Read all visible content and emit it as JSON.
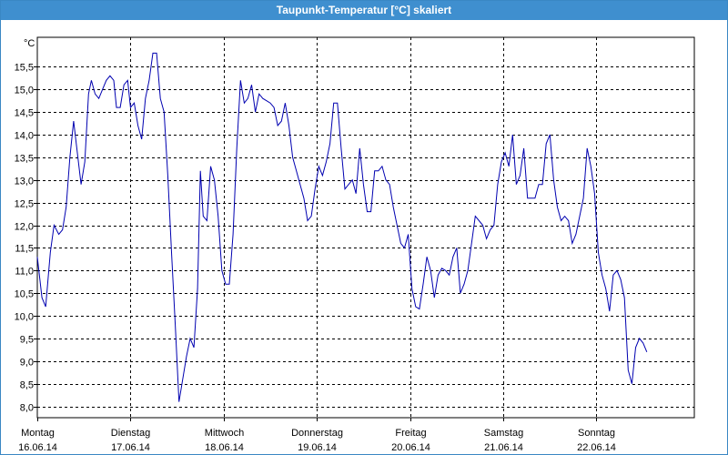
{
  "window": {
    "title": "Taupunkt-Temperatur [°C] skaliert"
  },
  "colors": {
    "title_bar": "#3f8fcf",
    "line": "#0000b0",
    "grid": "#000000"
  },
  "chart_data": {
    "type": "line",
    "title": "Taupunkt-Temperatur [°C] skaliert",
    "unit_label": "°C",
    "ylim": [
      7.75,
      16.15
    ],
    "yticks": [
      8.0,
      8.5,
      9.0,
      9.5,
      10.0,
      10.5,
      11.0,
      11.5,
      12.0,
      12.5,
      13.0,
      13.5,
      14.0,
      14.5,
      15.0,
      15.5
    ],
    "ytick_labels": [
      "8,0",
      "8,5",
      "9,0",
      "9,5",
      "10,0",
      "10,5",
      "11,0",
      "11,5",
      "12,0",
      "12,5",
      "13,0",
      "13,5",
      "14,0",
      "14,5",
      "15,0",
      "15,5"
    ],
    "xlim": [
      0,
      7.05
    ],
    "x_unit": "days since Montag 16.06.14 00:00",
    "day_labels": [
      {
        "day": "Montag",
        "date": "16.06.14"
      },
      {
        "day": "Dienstag",
        "date": "17.06.14"
      },
      {
        "day": "Mittwoch",
        "date": "18.06.14"
      },
      {
        "day": "Donnerstag",
        "date": "19.06.14"
      },
      {
        "day": "Freitag",
        "date": "20.06.14"
      },
      {
        "day": "Samstag",
        "date": "21.06.14"
      },
      {
        "day": "Sonntag",
        "date": "22.06.14"
      }
    ],
    "grid": true,
    "series": [
      {
        "name": "Taupunkt-Temperatur",
        "points": [
          [
            0.0,
            11.3
          ],
          [
            0.05,
            10.4
          ],
          [
            0.09,
            10.2
          ],
          [
            0.14,
            11.4
          ],
          [
            0.18,
            12.0
          ],
          [
            0.23,
            11.8
          ],
          [
            0.27,
            11.9
          ],
          [
            0.31,
            12.4
          ],
          [
            0.35,
            13.5
          ],
          [
            0.39,
            14.3
          ],
          [
            0.43,
            13.6
          ],
          [
            0.47,
            12.9
          ],
          [
            0.51,
            13.4
          ],
          [
            0.55,
            14.9
          ],
          [
            0.58,
            15.2
          ],
          [
            0.62,
            14.9
          ],
          [
            0.66,
            14.8
          ],
          [
            0.7,
            15.0
          ],
          [
            0.74,
            15.2
          ],
          [
            0.78,
            15.3
          ],
          [
            0.82,
            15.2
          ],
          [
            0.85,
            14.6
          ],
          [
            0.89,
            14.6
          ],
          [
            0.93,
            15.1
          ],
          [
            0.97,
            15.2
          ],
          [
            1.0,
            14.6
          ],
          [
            1.04,
            14.7
          ],
          [
            1.08,
            14.2
          ],
          [
            1.12,
            13.9
          ],
          [
            1.16,
            14.8
          ],
          [
            1.2,
            15.2
          ],
          [
            1.24,
            15.8
          ],
          [
            1.28,
            15.8
          ],
          [
            1.32,
            14.8
          ],
          [
            1.36,
            14.5
          ],
          [
            1.4,
            13.1
          ],
          [
            1.44,
            11.4
          ],
          [
            1.48,
            9.8
          ],
          [
            1.52,
            8.1
          ],
          [
            1.56,
            8.6
          ],
          [
            1.6,
            9.1
          ],
          [
            1.64,
            9.5
          ],
          [
            1.68,
            9.3
          ],
          [
            1.72,
            10.6
          ],
          [
            1.75,
            13.2
          ],
          [
            1.78,
            12.2
          ],
          [
            1.82,
            12.1
          ],
          [
            1.86,
            13.3
          ],
          [
            1.9,
            13.0
          ],
          [
            1.94,
            12.2
          ],
          [
            1.98,
            11.0
          ],
          [
            2.02,
            10.7
          ],
          [
            2.06,
            10.7
          ],
          [
            2.1,
            11.8
          ],
          [
            2.14,
            13.7
          ],
          [
            2.18,
            15.2
          ],
          [
            2.22,
            14.7
          ],
          [
            2.26,
            14.8
          ],
          [
            2.3,
            15.1
          ],
          [
            2.34,
            14.5
          ],
          [
            2.38,
            14.9
          ],
          [
            2.42,
            14.8
          ],
          [
            2.46,
            14.75
          ],
          [
            2.5,
            14.7
          ],
          [
            2.54,
            14.6
          ],
          [
            2.58,
            14.2
          ],
          [
            2.62,
            14.3
          ],
          [
            2.66,
            14.7
          ],
          [
            2.7,
            14.2
          ],
          [
            2.74,
            13.5
          ],
          [
            2.78,
            13.2
          ],
          [
            2.82,
            12.9
          ],
          [
            2.86,
            12.6
          ],
          [
            2.9,
            12.1
          ],
          [
            2.94,
            12.2
          ],
          [
            2.98,
            12.8
          ],
          [
            3.02,
            13.3
          ],
          [
            3.06,
            13.1
          ],
          [
            3.1,
            13.4
          ],
          [
            3.14,
            13.8
          ],
          [
            3.18,
            14.7
          ],
          [
            3.22,
            14.7
          ],
          [
            3.26,
            13.7
          ],
          [
            3.3,
            12.8
          ],
          [
            3.34,
            12.9
          ],
          [
            3.38,
            13.0
          ],
          [
            3.42,
            12.7
          ],
          [
            3.46,
            13.7
          ],
          [
            3.5,
            12.9
          ],
          [
            3.54,
            12.3
          ],
          [
            3.58,
            12.3
          ],
          [
            3.62,
            13.2
          ],
          [
            3.66,
            13.2
          ],
          [
            3.7,
            13.3
          ],
          [
            3.74,
            13.0
          ],
          [
            3.78,
            12.9
          ],
          [
            3.82,
            12.4
          ],
          [
            3.86,
            12.0
          ],
          [
            3.9,
            11.6
          ],
          [
            3.94,
            11.5
          ],
          [
            3.98,
            11.8
          ],
          [
            4.02,
            10.6
          ],
          [
            4.06,
            10.2
          ],
          [
            4.1,
            10.15
          ],
          [
            4.14,
            10.7
          ],
          [
            4.18,
            11.3
          ],
          [
            4.22,
            11.0
          ],
          [
            4.26,
            10.4
          ],
          [
            4.3,
            10.9
          ],
          [
            4.34,
            11.05
          ],
          [
            4.38,
            11.0
          ],
          [
            4.42,
            10.9
          ],
          [
            4.46,
            11.3
          ],
          [
            4.5,
            11.5
          ],
          [
            4.54,
            10.5
          ],
          [
            4.58,
            10.7
          ],
          [
            4.62,
            11.0
          ],
          [
            4.66,
            11.6
          ],
          [
            4.7,
            12.2
          ],
          [
            4.74,
            12.1
          ],
          [
            4.78,
            12.0
          ],
          [
            4.82,
            11.7
          ],
          [
            4.86,
            11.9
          ],
          [
            4.9,
            12.0
          ],
          [
            4.94,
            12.9
          ],
          [
            4.98,
            13.4
          ],
          [
            5.02,
            13.6
          ],
          [
            5.06,
            13.3
          ],
          [
            5.1,
            14.0
          ],
          [
            5.14,
            12.9
          ],
          [
            5.18,
            13.1
          ],
          [
            5.22,
            13.7
          ],
          [
            5.26,
            12.6
          ],
          [
            5.3,
            12.6
          ],
          [
            5.34,
            12.6
          ],
          [
            5.38,
            12.9
          ],
          [
            5.42,
            12.9
          ],
          [
            5.46,
            13.8
          ],
          [
            5.5,
            14.0
          ],
          [
            5.54,
            13.0
          ],
          [
            5.58,
            12.4
          ],
          [
            5.62,
            12.1
          ],
          [
            5.66,
            12.2
          ],
          [
            5.7,
            12.1
          ],
          [
            5.74,
            11.6
          ],
          [
            5.78,
            11.8
          ],
          [
            5.82,
            12.2
          ],
          [
            5.86,
            12.6
          ],
          [
            5.9,
            13.7
          ],
          [
            5.94,
            13.3
          ],
          [
            5.98,
            12.7
          ],
          [
            6.02,
            11.4
          ],
          [
            6.06,
            10.9
          ],
          [
            6.1,
            10.6
          ],
          [
            6.14,
            10.1
          ],
          [
            6.18,
            10.9
          ],
          [
            6.22,
            11.0
          ],
          [
            6.26,
            10.8
          ],
          [
            6.3,
            10.4
          ],
          [
            6.34,
            8.8
          ],
          [
            6.38,
            8.5
          ],
          [
            6.42,
            9.3
          ],
          [
            6.46,
            9.5
          ],
          [
            6.5,
            9.4
          ],
          [
            6.54,
            9.2
          ]
        ]
      }
    ]
  }
}
